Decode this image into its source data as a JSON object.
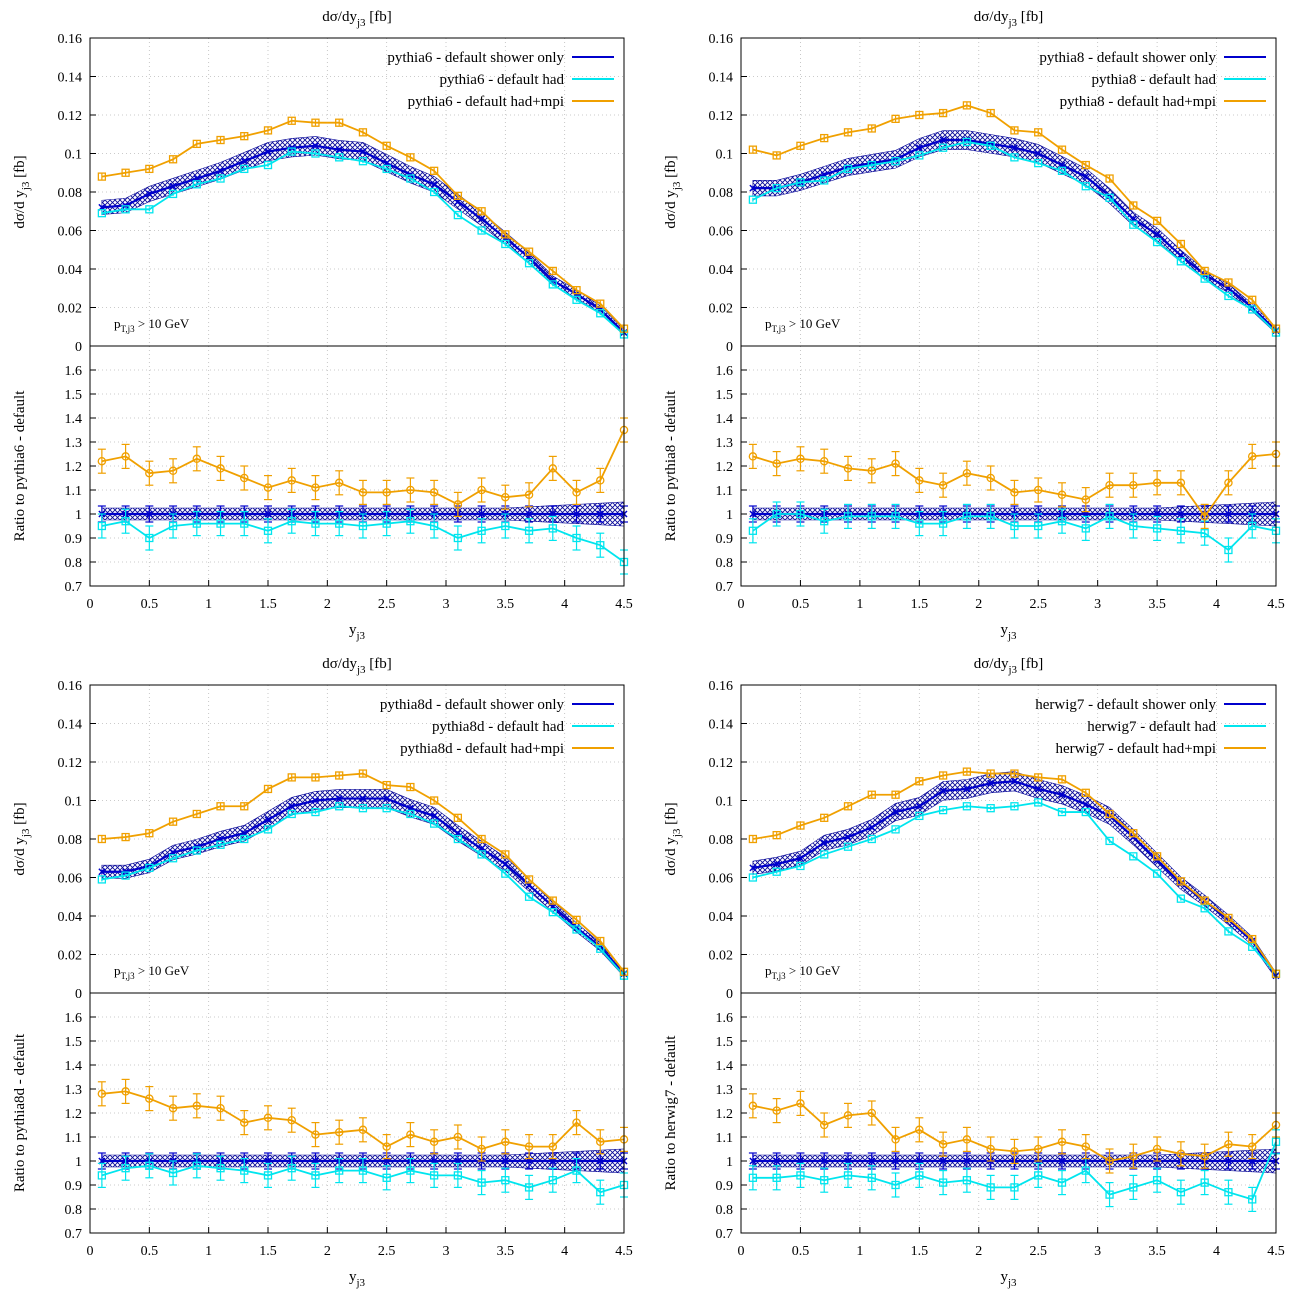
{
  "colors": {
    "shower": "#0000cc",
    "had": "#00e5ee",
    "mpi": "#f0a000",
    "band": "#0a0a9a",
    "grid": "#bbbbbb"
  },
  "chart_data": [
    {
      "type": "line",
      "title": "dσ/dy_j3 [fb]",
      "ylabel_top": "dσ/d y_j3 [fb]",
      "ylabel_ratio": "Ratio to pythia6 - default",
      "xlabel": "y_j3",
      "cut_label": "p_T,j3 > 10 GeV",
      "xlim": [
        0,
        4.5
      ],
      "ylim_top": [
        0,
        0.16
      ],
      "ylim_ratio": [
        0.7,
        1.7
      ],
      "x": [
        0.1,
        0.3,
        0.5,
        0.7,
        0.9,
        1.1,
        1.3,
        1.5,
        1.7,
        1.9,
        2.1,
        2.3,
        2.5,
        2.7,
        2.9,
        3.1,
        3.3,
        3.5,
        3.7,
        3.9,
        4.1,
        4.3,
        4.5
      ],
      "series": [
        {
          "name": "pythia6 - default shower only",
          "values": [
            0.072,
            0.073,
            0.079,
            0.083,
            0.087,
            0.091,
            0.096,
            0.101,
            0.103,
            0.104,
            0.102,
            0.101,
            0.095,
            0.089,
            0.084,
            0.075,
            0.066,
            0.056,
            0.046,
            0.034,
            0.027,
            0.019,
            0.007
          ],
          "ratio": [
            1.0,
            1.0,
            1.0,
            1.0,
            1.0,
            1.0,
            1.0,
            1.0,
            1.0,
            1.0,
            1.0,
            1.0,
            1.0,
            1.0,
            1.0,
            1.0,
            1.0,
            1.0,
            1.0,
            1.0,
            1.0,
            1.0,
            1.0
          ]
        },
        {
          "name": "pythia6 - default had",
          "values": [
            0.069,
            0.071,
            0.071,
            0.079,
            0.084,
            0.087,
            0.092,
            0.094,
            0.101,
            0.1,
            0.098,
            0.096,
            0.092,
            0.087,
            0.08,
            0.068,
            0.06,
            0.053,
            0.043,
            0.032,
            0.024,
            0.017,
            0.006
          ],
          "ratio": [
            0.95,
            0.97,
            0.9,
            0.95,
            0.96,
            0.96,
            0.96,
            0.93,
            0.97,
            0.96,
            0.96,
            0.95,
            0.96,
            0.97,
            0.95,
            0.9,
            0.93,
            0.95,
            0.93,
            0.94,
            0.9,
            0.87,
            0.8
          ]
        },
        {
          "name": "pythia6 - default had+mpi",
          "values": [
            0.088,
            0.09,
            0.092,
            0.097,
            0.105,
            0.107,
            0.109,
            0.112,
            0.117,
            0.116,
            0.116,
            0.111,
            0.104,
            0.098,
            0.091,
            0.078,
            0.07,
            0.058,
            0.049,
            0.039,
            0.029,
            0.022,
            0.009
          ],
          "ratio": [
            1.22,
            1.24,
            1.17,
            1.18,
            1.23,
            1.19,
            1.15,
            1.11,
            1.14,
            1.11,
            1.13,
            1.09,
            1.09,
            1.1,
            1.09,
            1.04,
            1.1,
            1.07,
            1.08,
            1.19,
            1.09,
            1.14,
            1.35
          ]
        }
      ]
    },
    {
      "type": "line",
      "title": "dσ/dy_j3 [fb]",
      "ylabel_top": "dσ/d y_j3 [fb]",
      "ylabel_ratio": "Ratio to pythia8 - default",
      "xlabel": "y_j3",
      "cut_label": "p_T,j3 > 10 GeV",
      "xlim": [
        0,
        4.5
      ],
      "ylim_top": [
        0,
        0.16
      ],
      "ylim_ratio": [
        0.7,
        1.7
      ],
      "x": [
        0.1,
        0.3,
        0.5,
        0.7,
        0.9,
        1.1,
        1.3,
        1.5,
        1.7,
        1.9,
        2.1,
        2.3,
        2.5,
        2.7,
        2.9,
        3.1,
        3.3,
        3.5,
        3.7,
        3.9,
        4.1,
        4.3,
        4.5
      ],
      "series": [
        {
          "name": "pythia8 - default shower only",
          "values": [
            0.082,
            0.082,
            0.085,
            0.089,
            0.093,
            0.095,
            0.097,
            0.103,
            0.107,
            0.107,
            0.105,
            0.103,
            0.1,
            0.094,
            0.088,
            0.078,
            0.066,
            0.058,
            0.047,
            0.037,
            0.03,
            0.02,
            0.008
          ],
          "ratio": [
            1.0,
            1.0,
            1.0,
            1.0,
            1.0,
            1.0,
            1.0,
            1.0,
            1.0,
            1.0,
            1.0,
            1.0,
            1.0,
            1.0,
            1.0,
            1.0,
            1.0,
            1.0,
            1.0,
            1.0,
            1.0,
            1.0,
            1.0
          ]
        },
        {
          "name": "pythia8 - default had",
          "values": [
            0.076,
            0.082,
            0.085,
            0.086,
            0.092,
            0.094,
            0.096,
            0.099,
            0.103,
            0.106,
            0.104,
            0.098,
            0.095,
            0.091,
            0.083,
            0.077,
            0.063,
            0.054,
            0.044,
            0.035,
            0.026,
            0.019,
            0.007
          ],
          "ratio": [
            0.93,
            1.0,
            1.0,
            0.97,
            0.99,
            0.99,
            0.99,
            0.96,
            0.96,
            0.99,
            0.99,
            0.95,
            0.95,
            0.97,
            0.94,
            0.99,
            0.95,
            0.94,
            0.93,
            0.92,
            0.85,
            0.95,
            0.93
          ]
        },
        {
          "name": "pythia8 - default had+mpi",
          "values": [
            0.102,
            0.099,
            0.104,
            0.108,
            0.111,
            0.113,
            0.118,
            0.12,
            0.121,
            0.125,
            0.121,
            0.112,
            0.111,
            0.102,
            0.094,
            0.087,
            0.073,
            0.065,
            0.053,
            0.039,
            0.033,
            0.024,
            0.009
          ],
          "ratio": [
            1.24,
            1.21,
            1.23,
            1.22,
            1.19,
            1.18,
            1.21,
            1.14,
            1.12,
            1.17,
            1.15,
            1.09,
            1.1,
            1.08,
            1.06,
            1.12,
            1.12,
            1.13,
            1.13,
            0.99,
            1.13,
            1.24,
            1.25
          ]
        }
      ]
    },
    {
      "type": "line",
      "title": "dσ/dy_j3 [fb]",
      "ylabel_top": "dσ/d y_j3 [fb]",
      "ylabel_ratio": "Ratio to pythia8d - default",
      "xlabel": "y_j3",
      "cut_label": "p_T,j3 > 10 GeV",
      "xlim": [
        0,
        4.5
      ],
      "ylim_top": [
        0,
        0.16
      ],
      "ylim_ratio": [
        0.7,
        1.7
      ],
      "x": [
        0.1,
        0.3,
        0.5,
        0.7,
        0.9,
        1.1,
        1.3,
        1.5,
        1.7,
        1.9,
        2.1,
        2.3,
        2.5,
        2.7,
        2.9,
        3.1,
        3.3,
        3.5,
        3.7,
        3.9,
        4.1,
        4.3,
        4.5
      ],
      "series": [
        {
          "name": "pythia8d - default shower only",
          "values": [
            0.063,
            0.063,
            0.066,
            0.073,
            0.076,
            0.08,
            0.083,
            0.09,
            0.097,
            0.1,
            0.101,
            0.101,
            0.101,
            0.096,
            0.092,
            0.083,
            0.075,
            0.067,
            0.056,
            0.045,
            0.034,
            0.024,
            0.01
          ],
          "ratio": [
            1.0,
            1.0,
            1.0,
            1.0,
            1.0,
            1.0,
            1.0,
            1.0,
            1.0,
            1.0,
            1.0,
            1.0,
            1.0,
            1.0,
            1.0,
            1.0,
            1.0,
            1.0,
            1.0,
            1.0,
            1.0,
            1.0,
            1.0
          ]
        },
        {
          "name": "pythia8d - default had",
          "values": [
            0.059,
            0.061,
            0.065,
            0.07,
            0.074,
            0.077,
            0.08,
            0.085,
            0.093,
            0.094,
            0.097,
            0.096,
            0.096,
            0.093,
            0.088,
            0.08,
            0.072,
            0.062,
            0.05,
            0.042,
            0.033,
            0.023,
            0.009
          ],
          "ratio": [
            0.94,
            0.97,
            0.98,
            0.95,
            0.98,
            0.97,
            0.96,
            0.94,
            0.97,
            0.94,
            0.96,
            0.96,
            0.93,
            0.96,
            0.94,
            0.94,
            0.91,
            0.92,
            0.89,
            0.92,
            0.96,
            0.87,
            0.9
          ]
        },
        {
          "name": "pythia8d - default had+mpi",
          "values": [
            0.08,
            0.081,
            0.083,
            0.089,
            0.093,
            0.097,
            0.097,
            0.106,
            0.112,
            0.112,
            0.113,
            0.114,
            0.108,
            0.107,
            0.1,
            0.091,
            0.08,
            0.072,
            0.059,
            0.048,
            0.038,
            0.027,
            0.011
          ],
          "ratio": [
            1.28,
            1.29,
            1.26,
            1.22,
            1.23,
            1.22,
            1.16,
            1.18,
            1.17,
            1.11,
            1.12,
            1.13,
            1.06,
            1.11,
            1.08,
            1.1,
            1.05,
            1.08,
            1.06,
            1.06,
            1.16,
            1.08,
            1.09
          ]
        }
      ]
    },
    {
      "type": "line",
      "title": "dσ/dy_j3 [fb]",
      "ylabel_top": "dσ/d y_j3 [fb]",
      "ylabel_ratio": "Ratio to herwig7 - default",
      "xlabel": "y_j3",
      "cut_label": "p_T,j3 > 10 GeV",
      "xlim": [
        0,
        4.5
      ],
      "ylim_top": [
        0,
        0.16
      ],
      "ylim_ratio": [
        0.7,
        1.7
      ],
      "x": [
        0.1,
        0.3,
        0.5,
        0.7,
        0.9,
        1.1,
        1.3,
        1.5,
        1.7,
        1.9,
        2.1,
        2.3,
        2.5,
        2.7,
        2.9,
        3.1,
        3.3,
        3.5,
        3.7,
        3.9,
        4.1,
        4.3,
        4.5
      ],
      "series": [
        {
          "name": "herwig7 - default shower only",
          "values": [
            0.065,
            0.067,
            0.07,
            0.078,
            0.081,
            0.086,
            0.094,
            0.097,
            0.105,
            0.106,
            0.109,
            0.11,
            0.106,
            0.103,
            0.098,
            0.092,
            0.081,
            0.069,
            0.057,
            0.048,
            0.038,
            0.027,
            0.009
          ],
          "ratio": [
            1.0,
            1.0,
            1.0,
            1.0,
            1.0,
            1.0,
            1.0,
            1.0,
            1.0,
            1.0,
            1.0,
            1.0,
            1.0,
            1.0,
            1.0,
            1.0,
            1.0,
            1.0,
            1.0,
            1.0,
            1.0,
            1.0,
            1.0
          ]
        },
        {
          "name": "herwig7 - default had",
          "values": [
            0.06,
            0.063,
            0.066,
            0.072,
            0.076,
            0.08,
            0.085,
            0.092,
            0.095,
            0.097,
            0.096,
            0.097,
            0.099,
            0.094,
            0.094,
            0.079,
            0.071,
            0.062,
            0.049,
            0.044,
            0.032,
            0.024,
            0.01
          ],
          "ratio": [
            0.93,
            0.93,
            0.94,
            0.92,
            0.94,
            0.93,
            0.9,
            0.94,
            0.91,
            0.92,
            0.89,
            0.89,
            0.94,
            0.91,
            0.96,
            0.86,
            0.89,
            0.92,
            0.87,
            0.91,
            0.87,
            0.84,
            1.08
          ]
        },
        {
          "name": "herwig7 - default had+mpi",
          "values": [
            0.08,
            0.082,
            0.087,
            0.091,
            0.097,
            0.103,
            0.103,
            0.11,
            0.113,
            0.115,
            0.114,
            0.114,
            0.112,
            0.111,
            0.104,
            0.093,
            0.083,
            0.071,
            0.058,
            0.048,
            0.039,
            0.028,
            0.01
          ],
          "ratio": [
            1.23,
            1.21,
            1.24,
            1.15,
            1.19,
            1.2,
            1.09,
            1.13,
            1.07,
            1.09,
            1.05,
            1.04,
            1.05,
            1.08,
            1.06,
            1.0,
            1.02,
            1.05,
            1.03,
            1.02,
            1.07,
            1.06,
            1.15
          ]
        }
      ]
    }
  ]
}
